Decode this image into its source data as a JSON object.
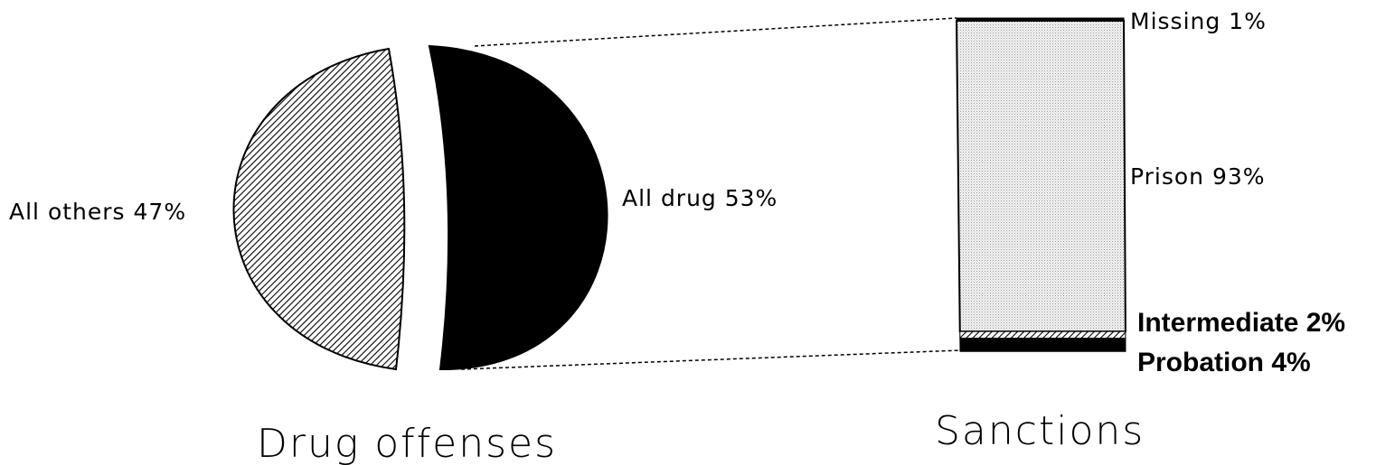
{
  "chart_data": [
    {
      "type": "pie",
      "caption": "Drug offenses",
      "slices": [
        {
          "label": "All others",
          "value": 47,
          "display": "All others 47%",
          "fill": "hatched"
        },
        {
          "label": "All drug",
          "value": 53,
          "display": "All drug 53%",
          "fill": "#000000"
        }
      ]
    },
    {
      "type": "bar",
      "stacked": true,
      "caption": "Sanctions",
      "segments": [
        {
          "label": "Missing",
          "value": 1,
          "display": "Missing 1%",
          "fill": "#000000"
        },
        {
          "label": "Prison",
          "value": 93,
          "display": "Prison 93%",
          "fill": "dotted-gray"
        },
        {
          "label": "Intermediate",
          "value": 2,
          "display": "Intermediate 2%",
          "fill": "hatched"
        },
        {
          "label": "Probation",
          "value": 4,
          "display": "Probation 4%",
          "fill": "#000000"
        }
      ]
    }
  ]
}
